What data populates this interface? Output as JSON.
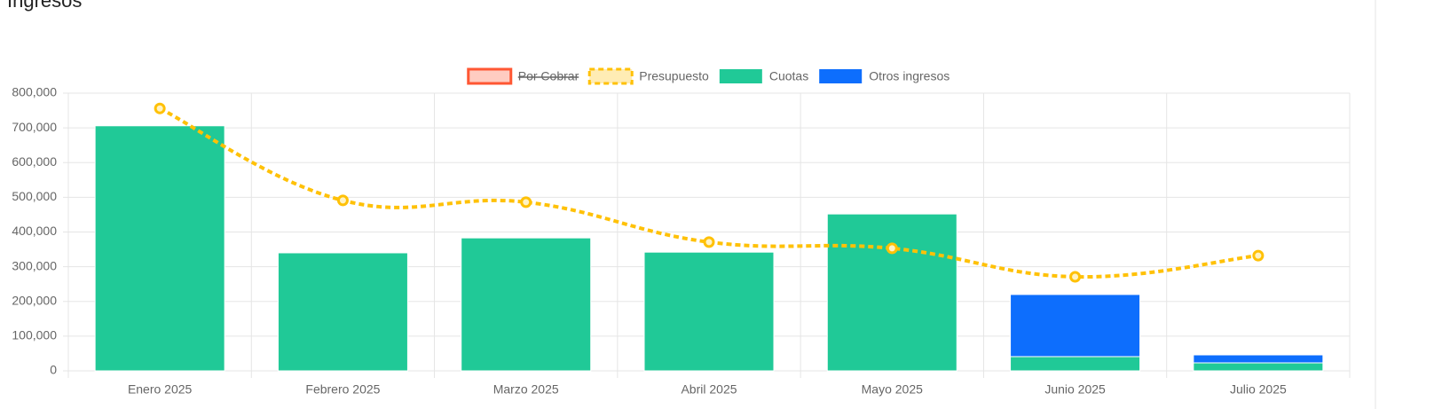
{
  "chart_data": {
    "type": "bar",
    "title": "Ingresos",
    "categories": [
      "Enero 2025",
      "Febrero 2025",
      "Marzo 2025",
      "Abril 2025",
      "Mayo 2025",
      "Junio 2025",
      "Julio 2025"
    ],
    "series": [
      {
        "name": "Por Cobrar",
        "color": "#ff5733",
        "hidden": true
      },
      {
        "name": "Presupuesto",
        "color": "#ffc107",
        "type": "line",
        "values": [
          756000,
          491000,
          486000,
          371000,
          353000,
          271000,
          332000
        ]
      },
      {
        "name": "Cuotas",
        "color": "#20c997",
        "type": "bar",
        "values": [
          706000,
          340000,
          383000,
          342000,
          452000,
          41000,
          23000
        ]
      },
      {
        "name": "Otros ingresos",
        "color": "#0d6efd",
        "type": "bar",
        "values": [
          0,
          0,
          0,
          0,
          0,
          179000,
          23000
        ]
      }
    ],
    "stacked": true,
    "ylim": [
      0,
      800000
    ],
    "yticks": [
      0,
      {
        "value": 100000,
        "label": "100,000"
      },
      {
        "value": 200000,
        "label": "200,000"
      },
      {
        "value": 300000,
        "label": "300,000"
      },
      {
        "value": 400000,
        "label": "400,000"
      },
      {
        "value": 500000,
        "label": "500,000"
      },
      {
        "value": 600000,
        "label": "600,000"
      },
      {
        "value": 700000,
        "label": "700,000"
      },
      {
        "value": 800000,
        "label": "800,000"
      }
    ],
    "grid": true,
    "legend": "top"
  }
}
